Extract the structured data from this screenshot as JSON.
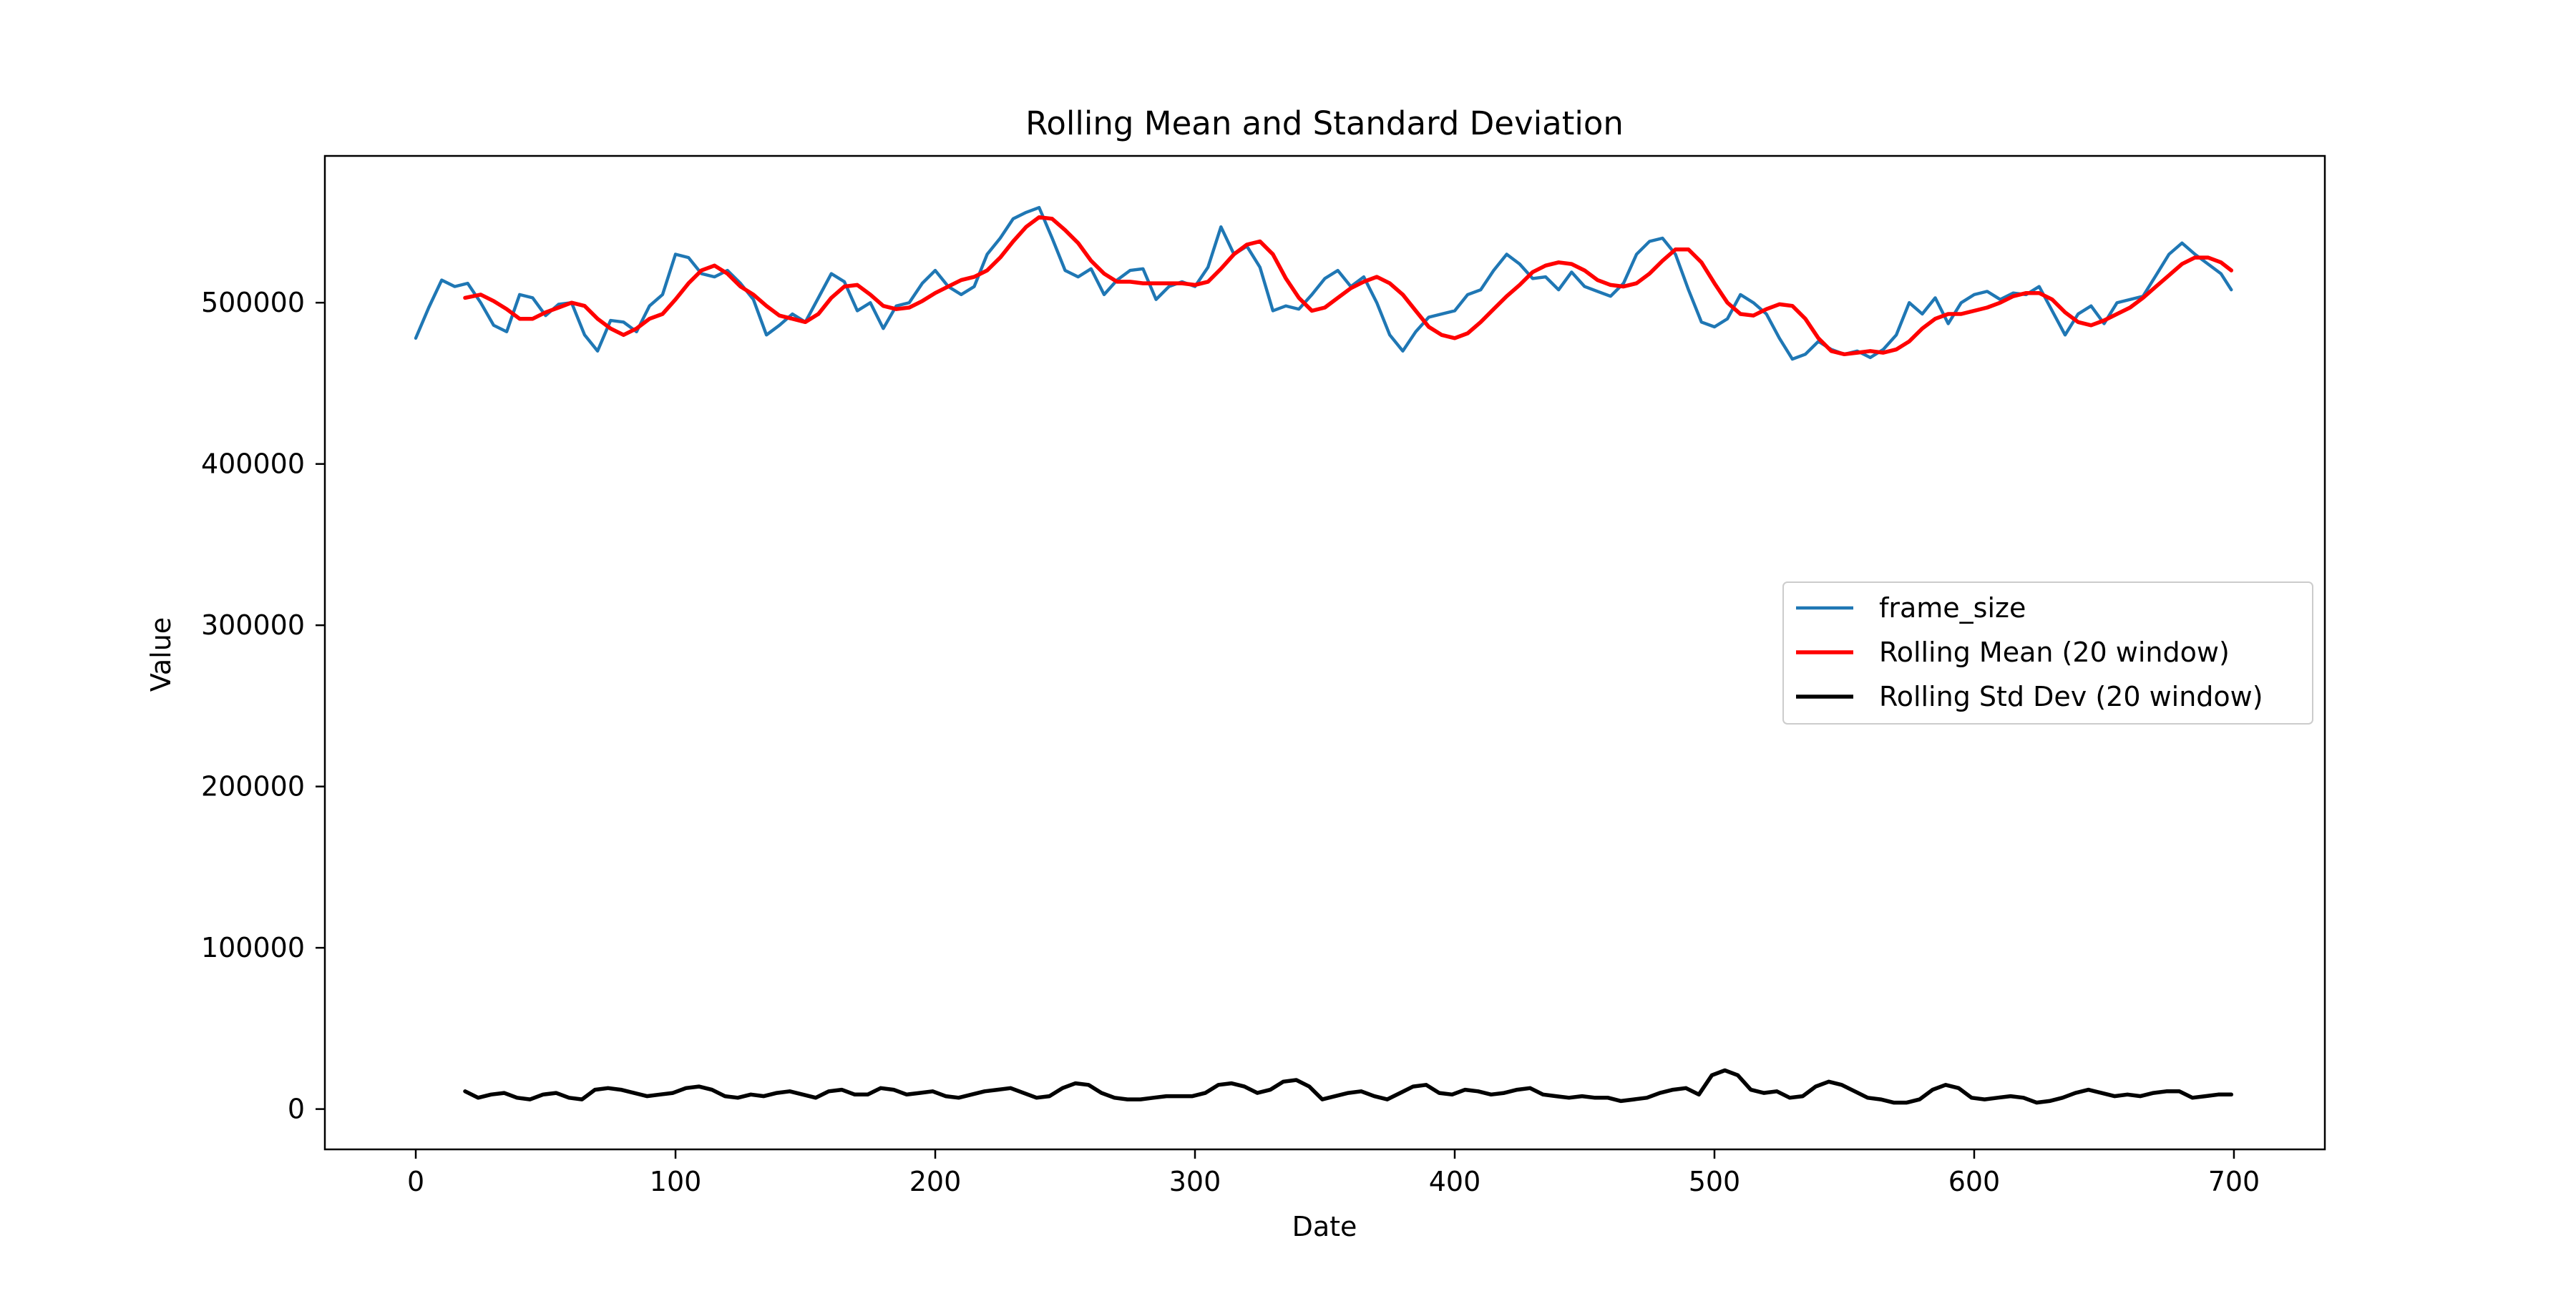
{
  "chart_data": {
    "type": "line",
    "title": "Rolling Mean and Standard Deviation",
    "xlabel": "Date",
    "ylabel": "Value",
    "xlim": [
      -35,
      735
    ],
    "ylim": [
      -25000,
      591000
    ],
    "x_ticks": [
      0,
      100,
      200,
      300,
      400,
      500,
      600,
      700
    ],
    "y_ticks": [
      0,
      100000,
      200000,
      300000,
      400000,
      500000
    ],
    "x_tick_labels": [
      "0",
      "100",
      "200",
      "300",
      "400",
      "500",
      "600",
      "700"
    ],
    "y_tick_labels": [
      "0",
      "100000",
      "200000",
      "300000",
      "400000",
      "500000"
    ],
    "grid": false,
    "legend_position": "center-right",
    "series": [
      {
        "name": "frame_size",
        "color": "#1f77b4",
        "x": [
          0,
          5,
          10,
          15,
          20,
          25,
          30,
          35,
          40,
          45,
          50,
          55,
          60,
          65,
          70,
          75,
          80,
          85,
          90,
          95,
          100,
          105,
          110,
          115,
          120,
          125,
          130,
          135,
          140,
          145,
          150,
          155,
          160,
          165,
          170,
          175,
          180,
          185,
          190,
          195,
          200,
          205,
          210,
          215,
          220,
          225,
          230,
          235,
          240,
          245,
          250,
          255,
          260,
          265,
          270,
          275,
          280,
          285,
          290,
          295,
          300,
          305,
          310,
          315,
          320,
          325,
          330,
          335,
          340,
          345,
          350,
          355,
          360,
          365,
          370,
          375,
          380,
          385,
          390,
          395,
          400,
          405,
          410,
          415,
          420,
          425,
          430,
          435,
          440,
          445,
          450,
          455,
          460,
          465,
          470,
          475,
          480,
          485,
          490,
          495,
          500,
          505,
          510,
          515,
          520,
          525,
          530,
          535,
          540,
          545,
          550,
          555,
          560,
          565,
          570,
          575,
          580,
          585,
          590,
          595,
          600,
          605,
          610,
          615,
          620,
          625,
          630,
          635,
          640,
          645,
          650,
          655,
          660,
          665,
          670,
          675,
          680,
          685,
          690,
          695,
          699
        ],
        "values": [
          478000,
          497000,
          514000,
          510000,
          512000,
          500000,
          486000,
          482000,
          505000,
          503000,
          492000,
          499000,
          500000,
          480000,
          470000,
          489000,
          488000,
          482000,
          498000,
          505000,
          530000,
          528000,
          518000,
          516000,
          520000,
          512000,
          502000,
          480000,
          486000,
          493000,
          488000,
          503000,
          518000,
          513000,
          495000,
          500000,
          484000,
          498000,
          500000,
          512000,
          520000,
          510000,
          505000,
          510000,
          530000,
          540000,
          552000,
          556000,
          559000,
          540000,
          520000,
          516000,
          521000,
          505000,
          514000,
          520000,
          521000,
          502000,
          510000,
          513000,
          510000,
          522000,
          547000,
          530000,
          535000,
          522000,
          495000,
          498000,
          496000,
          505000,
          515000,
          520000,
          510000,
          516000,
          500000,
          480000,
          470000,
          482000,
          491000,
          493000,
          495000,
          505000,
          508000,
          520000,
          530000,
          524000,
          515000,
          516000,
          508000,
          519000,
          510000,
          507000,
          504000,
          512000,
          530000,
          538000,
          540000,
          530000,
          508000,
          488000,
          485000,
          490000,
          505000,
          500000,
          493000,
          478000,
          465000,
          468000,
          476000,
          471000,
          468000,
          470000,
          466000,
          471000,
          480000,
          500000,
          493000,
          503000,
          487000,
          500000,
          505000,
          507000,
          502000,
          506000,
          505000,
          510000,
          495000,
          480000,
          493000,
          498000,
          487000,
          500000,
          502000,
          504000,
          517000,
          530000,
          537000,
          530000,
          524000,
          518000,
          508000
        ],
        "line_width": 2
      },
      {
        "name": "Rolling Mean (20 window)",
        "color": "#ff0000",
        "x": [
          19,
          25,
          30,
          35,
          40,
          45,
          50,
          55,
          60,
          65,
          70,
          75,
          80,
          85,
          90,
          95,
          100,
          105,
          110,
          115,
          120,
          125,
          130,
          135,
          140,
          145,
          150,
          155,
          160,
          165,
          170,
          175,
          180,
          185,
          190,
          195,
          200,
          205,
          210,
          215,
          220,
          225,
          230,
          235,
          240,
          245,
          250,
          255,
          260,
          265,
          270,
          275,
          280,
          285,
          290,
          295,
          300,
          305,
          310,
          315,
          320,
          325,
          330,
          335,
          340,
          345,
          350,
          355,
          360,
          365,
          370,
          375,
          380,
          385,
          390,
          395,
          400,
          405,
          410,
          415,
          420,
          425,
          430,
          435,
          440,
          445,
          450,
          455,
          460,
          465,
          470,
          475,
          480,
          485,
          490,
          495,
          500,
          505,
          510,
          515,
          520,
          525,
          530,
          535,
          540,
          545,
          550,
          555,
          560,
          565,
          570,
          575,
          580,
          585,
          590,
          595,
          600,
          605,
          610,
          615,
          620,
          625,
          630,
          635,
          640,
          645,
          650,
          655,
          660,
          665,
          670,
          675,
          680,
          685,
          690,
          695,
          699
        ],
        "values": [
          503000,
          505000,
          501000,
          496000,
          490000,
          490000,
          494000,
          497000,
          500000,
          498000,
          490000,
          484000,
          480000,
          484000,
          490000,
          493000,
          502000,
          512000,
          520000,
          523000,
          518000,
          510000,
          505000,
          498000,
          492000,
          490000,
          488000,
          493000,
          503000,
          510000,
          511000,
          505000,
          498000,
          496000,
          497000,
          501000,
          506000,
          510000,
          514000,
          516000,
          520000,
          528000,
          538000,
          547000,
          553000,
          552000,
          545000,
          537000,
          526000,
          518000,
          513000,
          513000,
          512000,
          512000,
          512000,
          512000,
          511000,
          513000,
          521000,
          530000,
          536000,
          538000,
          530000,
          515000,
          503000,
          495000,
          497000,
          503000,
          509000,
          513000,
          516000,
          512000,
          505000,
          495000,
          485000,
          480000,
          478000,
          481000,
          488000,
          496000,
          504000,
          511000,
          519000,
          523000,
          525000,
          524000,
          520000,
          514000,
          511000,
          510000,
          512000,
          518000,
          526000,
          533000,
          533000,
          525000,
          512000,
          500000,
          493000,
          492000,
          496000,
          499000,
          498000,
          490000,
          478000,
          470000,
          468000,
          469000,
          470000,
          469000,
          471000,
          476000,
          484000,
          490000,
          493000,
          493000,
          495000,
          497000,
          500000,
          504000,
          506000,
          506000,
          502000,
          494000,
          488000,
          486000,
          489000,
          493000,
          497000,
          503000,
          510000,
          517000,
          524000,
          528000,
          528000,
          525000,
          520000
        ],
        "line_width": 2.5
      },
      {
        "name": "Rolling Std Dev (20 window)",
        "color": "#000000",
        "x": [
          19,
          24,
          29,
          34,
          39,
          44,
          49,
          54,
          59,
          64,
          69,
          74,
          79,
          84,
          89,
          94,
          99,
          104,
          109,
          114,
          119,
          124,
          129,
          134,
          139,
          144,
          149,
          154,
          159,
          164,
          169,
          174,
          179,
          184,
          189,
          194,
          199,
          204,
          209,
          214,
          219,
          224,
          229,
          234,
          239,
          244,
          249,
          254,
          259,
          264,
          269,
          274,
          279,
          284,
          289,
          294,
          299,
          304,
          309,
          314,
          319,
          324,
          329,
          334,
          339,
          344,
          349,
          354,
          359,
          364,
          369,
          374,
          379,
          384,
          389,
          394,
          399,
          404,
          409,
          414,
          419,
          424,
          429,
          434,
          439,
          444,
          449,
          454,
          459,
          464,
          469,
          474,
          479,
          484,
          489,
          494,
          499,
          504,
          509,
          514,
          519,
          524,
          529,
          534,
          539,
          544,
          549,
          554,
          559,
          564,
          569,
          574,
          579,
          584,
          589,
          594,
          599,
          604,
          609,
          614,
          619,
          624,
          629,
          634,
          639,
          644,
          649,
          654,
          659,
          664,
          669,
          674,
          679,
          684,
          689,
          694,
          699
        ],
        "values": [
          11000,
          7000,
          9000,
          10000,
          7000,
          6000,
          9000,
          10000,
          7000,
          6000,
          12000,
          13000,
          12000,
          10000,
          8000,
          9000,
          10000,
          13000,
          14000,
          12000,
          8000,
          7000,
          9000,
          8000,
          10000,
          11000,
          9000,
          7000,
          11000,
          12000,
          9000,
          9000,
          13000,
          12000,
          9000,
          10000,
          11000,
          8000,
          7000,
          9000,
          11000,
          12000,
          13000,
          10000,
          7000,
          8000,
          13000,
          16000,
          15000,
          10000,
          7000,
          6000,
          6000,
          7000,
          8000,
          8000,
          8000,
          10000,
          15000,
          16000,
          14000,
          10000,
          12000,
          17000,
          18000,
          14000,
          6000,
          8000,
          10000,
          11000,
          8000,
          6000,
          10000,
          14000,
          15000,
          10000,
          9000,
          12000,
          11000,
          9000,
          10000,
          12000,
          13000,
          9000,
          8000,
          7000,
          8000,
          7000,
          7000,
          5000,
          6000,
          7000,
          10000,
          12000,
          13000,
          9000,
          21000,
          24000,
          21000,
          12000,
          10000,
          11000,
          7000,
          8000,
          14000,
          17000,
          15000,
          11000,
          7000,
          6000,
          4000,
          4000,
          6000,
          12000,
          15000,
          13000,
          7000,
          6000,
          7000,
          8000,
          7000,
          4000,
          5000,
          7000,
          10000,
          12000,
          10000,
          8000,
          9000,
          8000,
          10000,
          11000,
          11000,
          7000,
          8000,
          9000,
          9000
        ],
        "line_width": 2.5
      }
    ]
  }
}
